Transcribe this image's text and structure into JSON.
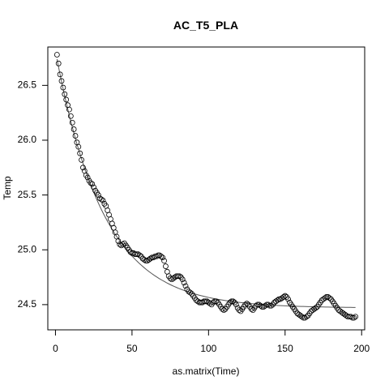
{
  "chart_data": {
    "type": "scatter",
    "title": "AC_T5_PLA",
    "xlabel": "as.matrix(Time)",
    "ylabel": "Temp",
    "xlim": [
      -5,
      202
    ],
    "ylim": [
      24.27,
      26.85
    ],
    "x_ticks": [
      0,
      50,
      100,
      150,
      200
    ],
    "x_tick_labels": [
      "0",
      "50",
      "100",
      "150",
      "200"
    ],
    "y_ticks": [
      24.5,
      25.0,
      25.5,
      26.0,
      26.5
    ],
    "y_tick_labels": [
      "24.5",
      "25.0",
      "25.5",
      "26.0",
      "26.5"
    ],
    "grid": false,
    "legend": "none",
    "point_color": "#000000",
    "fit_color": "#555555",
    "fit_curve": {
      "model": "exponential decay",
      "asymptote": 24.47,
      "initial": 26.74,
      "rate": 0.032
    },
    "series": [
      {
        "marker": "open-circle",
        "x": [
          1,
          2,
          3,
          4,
          5,
          6,
          7,
          8,
          9,
          10,
          11,
          12,
          13,
          14,
          15,
          16,
          17,
          18,
          19,
          20,
          21,
          22,
          23,
          24,
          25,
          26,
          27,
          28,
          29,
          30,
          31,
          32,
          33,
          34,
          35,
          36,
          37,
          38,
          39,
          40,
          41,
          42,
          43,
          44,
          45,
          46,
          47,
          48,
          49,
          50,
          51,
          52,
          53,
          54,
          55,
          56,
          57,
          58,
          59,
          60,
          61,
          62,
          63,
          64,
          65,
          66,
          67,
          68,
          69,
          70,
          71,
          72,
          73,
          74,
          75,
          76,
          77,
          78,
          79,
          80,
          81,
          82,
          83,
          84,
          85,
          86,
          87,
          88,
          89,
          90,
          91,
          92,
          93,
          94,
          95,
          96,
          97,
          98,
          99,
          100,
          101,
          102,
          103,
          104,
          105,
          106,
          107,
          108,
          109,
          110,
          111,
          112,
          113,
          114,
          115,
          116,
          117,
          118,
          119,
          120,
          121,
          122,
          123,
          124,
          125,
          126,
          127,
          128,
          129,
          130,
          131,
          132,
          133,
          134,
          135,
          136,
          137,
          138,
          139,
          140,
          141,
          142,
          143,
          144,
          145,
          146,
          147,
          148,
          149,
          150,
          151,
          152,
          153,
          154,
          155,
          156,
          157,
          158,
          159,
          160,
          161,
          162,
          163,
          164,
          165,
          166,
          167,
          168,
          169,
          170,
          171,
          172,
          173,
          174,
          175,
          176,
          177,
          178,
          179,
          180,
          181,
          182,
          183,
          184,
          185,
          186,
          187,
          188,
          189,
          190,
          191,
          192,
          193,
          194,
          195,
          196
        ],
        "y": [
          26.78,
          26.7,
          26.6,
          26.54,
          26.48,
          26.42,
          26.37,
          26.32,
          26.28,
          26.22,
          26.16,
          26.1,
          26.04,
          25.98,
          25.94,
          25.88,
          25.82,
          25.75,
          25.72,
          25.68,
          25.66,
          25.63,
          25.61,
          25.6,
          25.57,
          25.54,
          25.52,
          25.5,
          25.47,
          25.46,
          25.45,
          25.42,
          25.4,
          25.36,
          25.32,
          25.28,
          25.24,
          25.2,
          25.16,
          25.12,
          25.08,
          25.05,
          25.04,
          25.05,
          25.06,
          25.04,
          25.02,
          25.0,
          24.98,
          24.97,
          24.97,
          24.96,
          24.96,
          24.96,
          24.95,
          24.94,
          24.92,
          24.91,
          24.9,
          24.9,
          24.91,
          24.92,
          24.93,
          24.93,
          24.94,
          24.94,
          24.95,
          24.95,
          24.94,
          24.93,
          24.9,
          24.85,
          24.8,
          24.76,
          24.74,
          24.73,
          24.74,
          24.75,
          24.76,
          24.76,
          24.76,
          24.75,
          24.73,
          24.7,
          24.67,
          24.64,
          24.62,
          24.61,
          24.6,
          24.58,
          24.56,
          24.54,
          24.53,
          24.52,
          24.52,
          24.52,
          24.53,
          24.53,
          24.53,
          24.52,
          24.51,
          24.5,
          24.52,
          24.53,
          24.53,
          24.52,
          24.5,
          24.48,
          24.46,
          24.45,
          24.46,
          24.48,
          24.5,
          24.52,
          24.53,
          24.53,
          24.52,
          24.5,
          24.47,
          24.45,
          24.44,
          24.46,
          24.48,
          24.5,
          24.51,
          24.5,
          24.48,
          24.46,
          24.45,
          24.47,
          24.49,
          24.5,
          24.5,
          24.49,
          24.48,
          24.48,
          24.49,
          24.5,
          24.5,
          24.49,
          24.49,
          24.5,
          24.52,
          24.53,
          24.54,
          24.55,
          24.55,
          24.56,
          24.57,
          24.58,
          24.57,
          24.55,
          24.52,
          24.5,
          24.48,
          24.46,
          24.44,
          24.42,
          24.41,
          24.4,
          24.39,
          24.38,
          24.38,
          24.39,
          24.4,
          24.42,
          24.44,
          24.45,
          24.46,
          24.47,
          24.48,
          24.5,
          24.52,
          24.54,
          24.55,
          24.56,
          24.57,
          24.57,
          24.56,
          24.55,
          24.53,
          24.51,
          24.49,
          24.47,
          24.45,
          24.44,
          24.43,
          24.42,
          24.41,
          24.4,
          24.39,
          24.39,
          24.39,
          24.38,
          24.38,
          24.39
        ]
      }
    ]
  }
}
